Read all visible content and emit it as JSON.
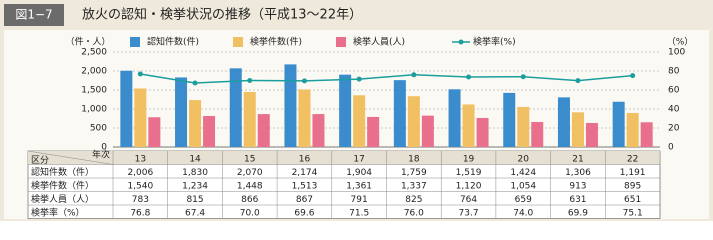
{
  "chart_data": {
    "type": "bar",
    "figure_number": "図1−7",
    "title": "放火の認知・検挙状況の推移（平成13〜22年）",
    "y_unit": "（件・人）",
    "y2_unit": "（%）",
    "categories": [
      "13",
      "14",
      "15",
      "16",
      "17",
      "18",
      "19",
      "20",
      "21",
      "22"
    ],
    "series": [
      {
        "name": "認知件数(件)",
        "color": "#3a8ccc",
        "values": [
          2006,
          1830,
          2070,
          2174,
          1904,
          1759,
          1519,
          1424,
          1306,
          1191
        ],
        "value_labels": [
          "2,006",
          "1,830",
          "2,070",
          "2,174",
          "1,904",
          "1,759",
          "1,519",
          "1,424",
          "1,306",
          "1,191"
        ]
      },
      {
        "name": "検挙件数(件)",
        "color": "#f0c062",
        "values": [
          1540,
          1234,
          1448,
          1513,
          1361,
          1337,
          1120,
          1054,
          913,
          895
        ],
        "value_labels": [
          "1,540",
          "1,234",
          "1,448",
          "1,513",
          "1,361",
          "1,337",
          "1,120",
          "1,054",
          "913",
          "895"
        ]
      },
      {
        "name": "検挙人員(人)",
        "color": "#e8708c",
        "values": [
          783,
          815,
          866,
          867,
          791,
          825,
          764,
          659,
          631,
          651
        ]
      },
      {
        "name": "検挙率(%)",
        "color": "#1a9e9e",
        "type": "line",
        "axis": "y2",
        "values": [
          76.8,
          67.4,
          70.0,
          69.6,
          71.5,
          76.0,
          73.7,
          74.0,
          69.9,
          75.1
        ],
        "value_labels": [
          "76.8",
          "67.4",
          "70.0",
          "69.6",
          "71.5",
          "76.0",
          "73.7",
          "74.0",
          "69.9",
          "75.1"
        ]
      }
    ],
    "ylim": [
      0,
      2500
    ],
    "yticks": [
      0,
      500,
      {
        "value": 1000,
        "label": "1,000"
      },
      {
        "value": 1500,
        "label": "1,500"
      },
      {
        "value": 2000,
        "label": "2,000"
      },
      {
        "value": 2500,
        "label": "2,500"
      }
    ],
    "y2lim": [
      0,
      100
    ],
    "y2ticks": [
      0,
      20,
      40,
      60,
      80,
      100
    ],
    "grid": true,
    "table": {
      "corner_row": "区分",
      "corner_col": "年次",
      "row_labels": [
        "認知件数（件）",
        "検挙件数（件）",
        "検挙人員（人）",
        "検挙率（%）"
      ]
    }
  }
}
